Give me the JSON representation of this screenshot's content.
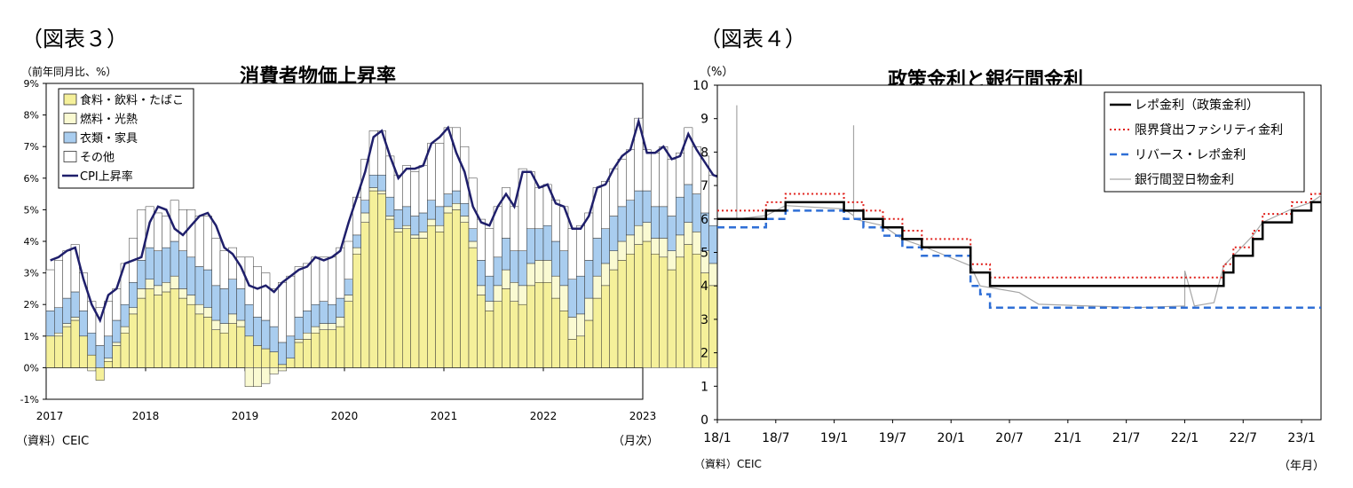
{
  "fig3": {
    "label": "（図表３）",
    "yunit": "（前年同月比、%）",
    "source": "（資料）CEIC",
    "xunit": "（月次）"
  },
  "fig4": {
    "label": "（図表４）",
    "yunit": "（%）",
    "source": "（資料）CEIC",
    "xunit": "（年月）"
  },
  "chart_data": [
    {
      "type": "bar",
      "title": "消費者物価上昇率",
      "ylim": [
        -1,
        9
      ],
      "yticks": [
        "-1%",
        "0%",
        "1%",
        "2%",
        "3%",
        "4%",
        "5%",
        "6%",
        "7%",
        "8%",
        "9%"
      ],
      "xticks": [
        "2017",
        "2018",
        "2019",
        "2020",
        "2021",
        "2022",
        "2023"
      ],
      "start": "2017-01",
      "stacked": true,
      "colors": {
        "food": "#f5f09a",
        "fuel": "#fafad2",
        "clothing": "#a9cdef",
        "other": "#ffffff",
        "cpi": "#1f1f6b"
      },
      "legend_position": "top-left",
      "series": [
        {
          "name": "食料・飲料・たばこ",
          "values": [
            1.0,
            1.0,
            1.3,
            1.5,
            1.0,
            0.4,
            -0.4,
            0.2,
            0.7,
            1.1,
            1.7,
            2.2,
            2.5,
            2.3,
            2.4,
            2.5,
            2.2,
            2.0,
            1.7,
            1.6,
            1.2,
            1.1,
            1.4,
            1.3,
            1.0,
            0.7,
            0.6,
            0.5,
            0.1,
            0.3,
            0.8,
            0.9,
            1.1,
            1.2,
            1.2,
            1.3,
            2.1,
            3.6,
            4.6,
            5.6,
            5.5,
            4.7,
            4.3,
            4.4,
            4.1,
            4.1,
            4.5,
            4.3,
            4.9,
            5.0,
            4.6,
            3.8,
            2.3,
            1.8,
            2.1,
            2.5,
            2.1,
            2.0,
            2.6,
            2.7,
            2.7,
            2.2,
            1.8,
            0.9,
            1.0,
            1.5,
            2.2,
            2.6,
            3.1,
            3.4,
            3.6,
            3.9,
            4.0,
            3.6,
            3.5,
            3.1,
            3.5,
            3.9,
            3.6,
            3.0,
            2.6,
            2.2,
            2.9
          ]
        },
        {
          "name": "燃料・光熱",
          "values": [
            0.0,
            0.1,
            0.1,
            0.1,
            0.0,
            -0.1,
            0.0,
            0.1,
            0.1,
            0.2,
            0.2,
            0.3,
            0.3,
            0.3,
            0.3,
            0.4,
            0.3,
            0.3,
            0.3,
            0.3,
            0.3,
            0.3,
            0.3,
            0.2,
            -0.6,
            -0.6,
            -0.5,
            -0.2,
            -0.1,
            0.0,
            0.1,
            0.2,
            0.2,
            0.2,
            0.2,
            0.3,
            0.2,
            0.2,
            0.3,
            0.1,
            0.1,
            0.1,
            0.1,
            0.1,
            0.1,
            0.2,
            0.2,
            0.2,
            0.2,
            0.2,
            0.2,
            0.2,
            0.3,
            0.3,
            0.5,
            0.6,
            0.6,
            0.6,
            0.7,
            0.7,
            0.7,
            0.7,
            0.8,
            0.7,
            0.7,
            0.7,
            0.7,
            0.7,
            0.6,
            0.6,
            0.6,
            0.6,
            0.6,
            0.5,
            0.6,
            0.6,
            0.7,
            0.7,
            0.7,
            0.7,
            0.7,
            0.7,
            0.7
          ]
        },
        {
          "name": "衣類・家具",
          "values": [
            0.8,
            0.8,
            0.8,
            0.8,
            0.8,
            0.7,
            0.7,
            0.7,
            0.7,
            0.7,
            0.8,
            0.9,
            1.0,
            1.1,
            1.1,
            1.1,
            1.2,
            1.2,
            1.2,
            1.2,
            1.1,
            1.1,
            1.1,
            1.0,
            1.0,
            0.9,
            0.9,
            0.8,
            0.7,
            0.7,
            0.7,
            0.7,
            0.7,
            0.7,
            0.6,
            0.6,
            0.5,
            0.4,
            0.4,
            0.4,
            0.5,
            0.6,
            0.6,
            0.6,
            0.6,
            0.6,
            0.6,
            0.6,
            0.4,
            0.4,
            0.4,
            0.4,
            0.8,
            0.8,
            0.9,
            1.0,
            1.0,
            1.1,
            1.1,
            1.0,
            1.1,
            1.1,
            1.1,
            1.2,
            1.2,
            1.2,
            1.2,
            1.1,
            1.1,
            1.1,
            1.1,
            1.1,
            1.0,
            1.0,
            1.0,
            1.1,
            1.2,
            1.2,
            1.2,
            1.2,
            1.2,
            1.2,
            1.2
          ]
        },
        {
          "name": "その他",
          "values": [
            1.3,
            1.5,
            1.5,
            1.5,
            1.2,
            1.0,
            1.2,
            1.1,
            1.0,
            1.3,
            1.4,
            1.6,
            1.3,
            1.2,
            1.0,
            1.3,
            1.3,
            1.5,
            1.6,
            1.7,
            1.5,
            1.2,
            1.0,
            1.0,
            1.5,
            1.6,
            1.5,
            1.2,
            1.9,
            1.9,
            1.6,
            1.5,
            1.5,
            1.4,
            1.5,
            1.6,
            1.2,
            1.2,
            1.3,
            1.4,
            1.4,
            1.3,
            1.1,
            1.3,
            1.4,
            1.5,
            1.8,
            2.0,
            2.1,
            2.0,
            1.8,
            1.6,
            1.3,
            1.5,
            1.6,
            1.6,
            1.4,
            2.6,
            1.8,
            1.3,
            1.3,
            1.3,
            1.4,
            1.6,
            1.6,
            1.5,
            1.6,
            1.5,
            1.5,
            1.5,
            1.6,
            2.3,
            1.3,
            1.7,
            1.9,
            1.8,
            1.4,
            1.8,
            1.5,
            1.8,
            1.6,
            1.7,
            1.8
          ]
        },
        {
          "name": "CPI上昇率",
          "type": "line",
          "values": [
            3.4,
            3.5,
            3.7,
            3.8,
            2.8,
            2.0,
            1.5,
            2.3,
            2.5,
            3.3,
            3.4,
            3.5,
            4.6,
            5.1,
            5.0,
            4.4,
            4.2,
            4.5,
            4.8,
            4.9,
            4.5,
            3.8,
            3.6,
            3.2,
            2.6,
            2.5,
            2.6,
            2.4,
            2.7,
            2.9,
            3.1,
            3.2,
            3.5,
            3.4,
            3.5,
            3.7,
            4.6,
            5.4,
            6.2,
            7.3,
            7.5,
            6.7,
            6.0,
            6.3,
            6.3,
            6.4,
            7.1,
            7.3,
            7.6,
            6.8,
            6.2,
            5.1,
            4.6,
            4.5,
            5.1,
            5.5,
            5.1,
            6.2,
            6.2,
            5.7,
            5.8,
            5.2,
            5.1,
            4.4,
            4.4,
            4.8,
            5.7,
            5.8,
            6.3,
            6.7,
            6.9,
            7.8,
            6.8,
            6.8,
            7.0,
            6.6,
            6.7,
            7.4,
            6.9,
            6.5,
            6.1,
            6.0,
            6.6
          ]
        }
      ]
    },
    {
      "type": "line",
      "title": "政策金利と銀行間金利",
      "ylim": [
        0,
        10
      ],
      "yticks": [
        "0",
        "1",
        "2",
        "3",
        "4",
        "5",
        "6",
        "7",
        "8",
        "9",
        "10"
      ],
      "xticks": [
        "18/1",
        "18/7",
        "19/1",
        "19/7",
        "20/1",
        "20/7",
        "21/1",
        "21/7",
        "22/1",
        "22/7",
        "23/1"
      ],
      "legend_position": "top-right",
      "series": [
        {
          "name": "レポ金利（政策金利）",
          "color": "#000000",
          "style": "solid",
          "points": [
            [
              "2018-01",
              6.0
            ],
            [
              "2018-06",
              6.25
            ],
            [
              "2018-08",
              6.5
            ],
            [
              "2019-02",
              6.25
            ],
            [
              "2019-04",
              6.0
            ],
            [
              "2019-06",
              5.75
            ],
            [
              "2019-08",
              5.4
            ],
            [
              "2019-10",
              5.15
            ],
            [
              "2020-03",
              4.4
            ],
            [
              "2020-05",
              4.0
            ],
            [
              "2022-05",
              4.4
            ],
            [
              "2022-06",
              4.9
            ],
            [
              "2022-08",
              5.4
            ],
            [
              "2022-09",
              5.9
            ],
            [
              "2022-12",
              6.25
            ],
            [
              "2023-02",
              6.5
            ],
            [
              "2023-03",
              6.5
            ]
          ]
        },
        {
          "name": "限界貸出ファシリティ金利",
          "color": "#e0201b",
          "style": "dotted",
          "points": [
            [
              "2018-01",
              6.25
            ],
            [
              "2018-06",
              6.5
            ],
            [
              "2018-08",
              6.75
            ],
            [
              "2019-02",
              6.5
            ],
            [
              "2019-04",
              6.25
            ],
            [
              "2019-06",
              6.0
            ],
            [
              "2019-08",
              5.65
            ],
            [
              "2019-10",
              5.4
            ],
            [
              "2020-03",
              4.65
            ],
            [
              "2020-05",
              4.25
            ],
            [
              "2022-05",
              4.65
            ],
            [
              "2022-06",
              5.15
            ],
            [
              "2022-08",
              5.65
            ],
            [
              "2022-09",
              6.15
            ],
            [
              "2022-12",
              6.5
            ],
            [
              "2023-02",
              6.75
            ],
            [
              "2023-03",
              6.75
            ]
          ]
        },
        {
          "name": "リバース・レポ金利",
          "color": "#2f6fd6",
          "style": "dashed",
          "points": [
            [
              "2018-01",
              5.75
            ],
            [
              "2018-06",
              6.0
            ],
            [
              "2018-08",
              6.25
            ],
            [
              "2019-02",
              6.0
            ],
            [
              "2019-04",
              5.75
            ],
            [
              "2019-06",
              5.5
            ],
            [
              "2019-08",
              5.15
            ],
            [
              "2019-10",
              4.9
            ],
            [
              "2020-03",
              4.0
            ],
            [
              "2020-04",
              3.75
            ],
            [
              "2020-05",
              3.35
            ],
            [
              "2023-03",
              3.35
            ]
          ]
        },
        {
          "name": "銀行間翌日物金利",
          "color": "#a6a6a6",
          "style": "solid",
          "points": [
            [
              "2018-01",
              6.0
            ],
            [
              "2018-03",
              6.0
            ],
            [
              "2018-03",
              9.4
            ],
            [
              "2018-03",
              6.0
            ],
            [
              "2018-06",
              6.1
            ],
            [
              "2018-08",
              6.4
            ],
            [
              "2019-02",
              6.3
            ],
            [
              "2019-03",
              6.1
            ],
            [
              "2019-03",
              8.8
            ],
            [
              "2019-03",
              6.0
            ],
            [
              "2019-06",
              5.8
            ],
            [
              "2019-08",
              5.4
            ],
            [
              "2019-10",
              5.2
            ],
            [
              "2020-03",
              4.6
            ],
            [
              "2020-04",
              4.0
            ],
            [
              "2020-08",
              3.8
            ],
            [
              "2020-10",
              3.45
            ],
            [
              "2021-08",
              3.35
            ],
            [
              "2022-01",
              3.4
            ],
            [
              "2022-01",
              4.45
            ],
            [
              "2022-02",
              3.4
            ],
            [
              "2022-04",
              3.5
            ],
            [
              "2022-05",
              4.6
            ],
            [
              "2022-06",
              4.9
            ],
            [
              "2022-08",
              5.5
            ],
            [
              "2022-09",
              5.9
            ],
            [
              "2022-12",
              6.3
            ],
            [
              "2023-02",
              6.5
            ],
            [
              "2023-03",
              6.7
            ]
          ]
        }
      ]
    }
  ]
}
